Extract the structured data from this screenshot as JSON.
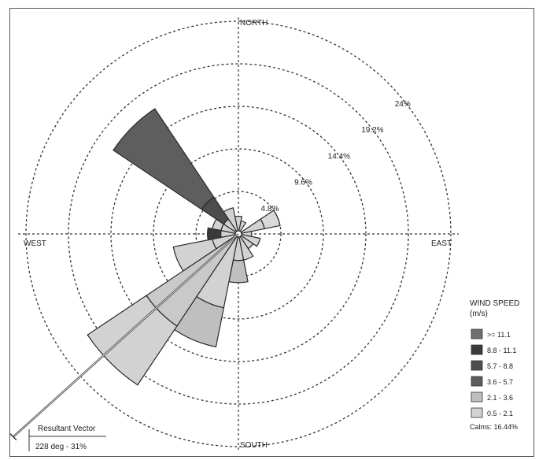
{
  "chart_data": {
    "type": "wind-rose",
    "directions": {
      "north": "NORTH",
      "south": "SOUTH",
      "west": "WEST",
      "east": "EAST"
    },
    "ring_labels": [
      "4.8%",
      "9.6%",
      "14.4%",
      "19.2%",
      "24%"
    ],
    "ring_values": [
      4.8,
      9.6,
      14.4,
      19.2,
      24
    ],
    "legend": {
      "title": "WIND SPEED",
      "units": "(m/s)",
      "items": [
        {
          "label": ">= 11.1",
          "color": "#6f6f6f"
        },
        {
          "label": "8.8 - 11.1",
          "color": "#3a3a3a"
        },
        {
          "label": "5.7 - 8.8",
          "color": "#4d4d4d"
        },
        {
          "label": "3.6 - 5.7",
          "color": "#5e5e5e"
        },
        {
          "label": "2.1 - 3.6",
          "color": "#bfbfbf"
        },
        {
          "label": "0.5 - 2.1",
          "color": "#d2d2d2"
        }
      ],
      "calms": "Calms: 16.44%"
    },
    "resultant_vector": {
      "title": "Resultant Vector",
      "value_text": "228 deg - 31%",
      "direction_deg": 228
    },
    "petals": [
      {
        "direction_deg": 0,
        "segments": [
          {
            "value": 2.0,
            "color": "#d2d2d2"
          }
        ]
      },
      {
        "direction_deg": 22.5,
        "segments": [
          {
            "value": 1.5,
            "color": "#d2d2d2"
          }
        ]
      },
      {
        "direction_deg": 67.5,
        "segments": [
          {
            "value": 3.0,
            "color": "#d2d2d2"
          },
          {
            "value": 4.8,
            "color": "#d9d9d9"
          }
        ]
      },
      {
        "direction_deg": 90,
        "segments": [
          {
            "value": 1.5,
            "color": "#d2d2d2"
          }
        ]
      },
      {
        "direction_deg": 112.5,
        "segments": [
          {
            "value": 2.5,
            "color": "#d2d2d2"
          }
        ]
      },
      {
        "direction_deg": 135,
        "segments": [
          {
            "value": 2.0,
            "color": "#d2d2d2"
          }
        ]
      },
      {
        "direction_deg": 157.5,
        "segments": [
          {
            "value": 3.0,
            "color": "#d2d2d2"
          }
        ]
      },
      {
        "direction_deg": 180,
        "segments": [
          {
            "value": 3.0,
            "color": "#d2d2d2"
          },
          {
            "value": 5.5,
            "color": "#bfbfbf"
          }
        ]
      },
      {
        "direction_deg": 202.5,
        "segments": [
          {
            "value": 8.5,
            "color": "#d2d2d2"
          },
          {
            "value": 13.0,
            "color": "#bfbfbf"
          }
        ]
      },
      {
        "direction_deg": 225,
        "segments": [
          {
            "value": 12.5,
            "color": "#c9c9c9"
          },
          {
            "value": 20.5,
            "color": "#d2d2d2"
          }
        ]
      },
      {
        "direction_deg": 247.5,
        "segments": [
          {
            "value": 3.0,
            "color": "#d2d2d2"
          },
          {
            "value": 7.5,
            "color": "#d2d2d2"
          }
        ]
      },
      {
        "direction_deg": 270,
        "segments": [
          {
            "value": 2.0,
            "color": "#d2d2d2"
          },
          {
            "value": 3.5,
            "color": "#3a3a3a"
          }
        ]
      },
      {
        "direction_deg": 292.5,
        "segments": [
          {
            "value": 2.0,
            "color": "#d2d2d2"
          },
          {
            "value": 3.0,
            "color": "#d2d2d2"
          }
        ]
      },
      {
        "direction_deg": 315,
        "segments": [
          {
            "value": 2.0,
            "color": "#d2d2d2"
          },
          {
            "value": 5.0,
            "color": "#4d4d4d"
          },
          {
            "value": 17.0,
            "color": "#5e5e5e"
          }
        ]
      },
      {
        "direction_deg": 337.5,
        "segments": [
          {
            "value": 3.0,
            "color": "#d2d2d2"
          }
        ]
      }
    ]
  }
}
